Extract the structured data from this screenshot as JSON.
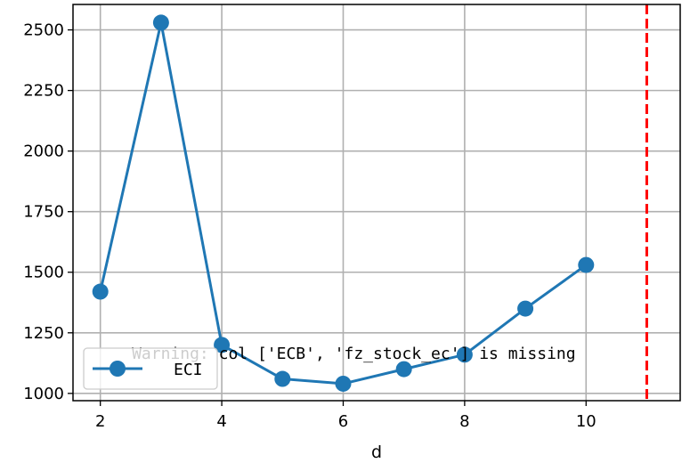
{
  "chart_data": {
    "type": "line",
    "x": [
      2,
      3,
      4,
      5,
      6,
      7,
      8,
      9,
      10
    ],
    "series": [
      {
        "name": "ECI",
        "values": [
          1420,
          2530,
          1200,
          1060,
          1040,
          1100,
          1160,
          1350,
          1530
        ],
        "color": "#1f77b4"
      }
    ],
    "xlabel": "d",
    "ylabel": "",
    "xlim": [
      1.55,
      11.55
    ],
    "ylim": [
      970,
      2605
    ],
    "xticks": [
      "2",
      "4",
      "6",
      "8",
      "10"
    ],
    "yticks": [
      "1000",
      "1250",
      "1500",
      "1750",
      "2000",
      "2250",
      "2500"
    ],
    "grid": true,
    "legend": "lower-left",
    "vline": {
      "x": 11,
      "color": "#ff0000",
      "style": "dashed"
    },
    "annotation": "Warning: col ['ECB', 'fz_stock_ec'] is missing"
  }
}
